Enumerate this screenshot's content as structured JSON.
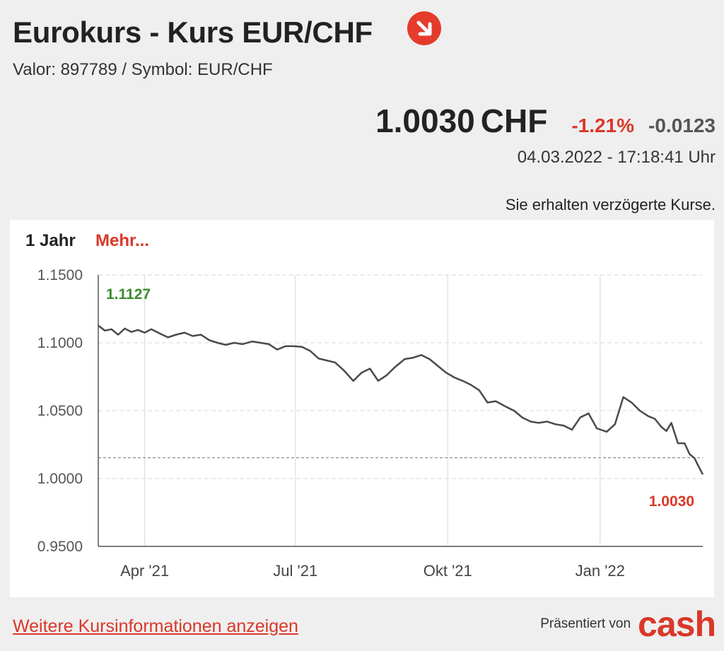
{
  "header": {
    "title": "Eurokurs - Kurs EUR/CHF",
    "subtitle": "Valor: 897789 / Symbol: EUR/CHF",
    "trend_icon": "arrow-down-right-icon"
  },
  "quote": {
    "price": "1.0030",
    "unit": "CHF",
    "change_pct": "-1.21%",
    "change_abs": "-0.0123",
    "timestamp": "04.03.2022 - 17:18:41 Uhr",
    "delay_note": "Sie erhalten verzögerte Kurse."
  },
  "chart_controls": {
    "range": "1 Jahr",
    "more": "Mehr..."
  },
  "chart_data": {
    "type": "line",
    "y_ticks": [
      "1.1500",
      "1.1000",
      "1.0500",
      "1.0000",
      "0.9500"
    ],
    "ylim": [
      0.95,
      1.15
    ],
    "x_ticks": [
      {
        "label": "Apr '21",
        "date": "2021-04-01"
      },
      {
        "label": "Jul '21",
        "date": "2021-07-01"
      },
      {
        "label": "Okt '21",
        "date": "2021-10-01"
      },
      {
        "label": "Jan '22",
        "date": "2022-01-01"
      }
    ],
    "xlim": [
      "2021-03-04",
      "2022-03-04"
    ],
    "grid": true,
    "reference_line": 1.0153,
    "annotation_high": "1.1127",
    "annotation_last": "1.0030",
    "series": [
      {
        "x": [
          "2021-03-04",
          "2021-03-08",
          "2021-03-12",
          "2021-03-16",
          "2021-03-20",
          "2021-03-24",
          "2021-03-28",
          "2021-04-01",
          "2021-04-05",
          "2021-04-10",
          "2021-04-15",
          "2021-04-20",
          "2021-04-25",
          "2021-04-30",
          "2021-05-05",
          "2021-05-10",
          "2021-05-15",
          "2021-05-20",
          "2021-05-25",
          "2021-05-30",
          "2021-06-05",
          "2021-06-10",
          "2021-06-15",
          "2021-06-20",
          "2021-06-25",
          "2021-06-30",
          "2021-07-05",
          "2021-07-10",
          "2021-07-15",
          "2021-07-20",
          "2021-07-25",
          "2021-07-30",
          "2021-08-05",
          "2021-08-10",
          "2021-08-15",
          "2021-08-20",
          "2021-08-25",
          "2021-08-30",
          "2021-09-05",
          "2021-09-10",
          "2021-09-15",
          "2021-09-20",
          "2021-09-25",
          "2021-09-30",
          "2021-10-05",
          "2021-10-10",
          "2021-10-15",
          "2021-10-20",
          "2021-10-25",
          "2021-10-30",
          "2021-11-05",
          "2021-11-10",
          "2021-11-15",
          "2021-11-20",
          "2021-11-25",
          "2021-11-30",
          "2021-12-05",
          "2021-12-10",
          "2021-12-15",
          "2021-12-20",
          "2021-12-25",
          "2021-12-30",
          "2022-01-05",
          "2022-01-10",
          "2022-01-15",
          "2022-01-20",
          "2022-01-25",
          "2022-01-30",
          "2022-02-03",
          "2022-02-07",
          "2022-02-10",
          "2022-02-13",
          "2022-02-17",
          "2022-02-21",
          "2022-02-24",
          "2022-02-27",
          "2022-03-01",
          "2022-03-04"
        ],
        "y": [
          1.1127,
          1.109,
          1.11,
          1.106,
          1.1105,
          1.108,
          1.1095,
          1.1075,
          1.11,
          1.107,
          1.104,
          1.106,
          1.1075,
          1.105,
          1.106,
          1.102,
          1.1,
          1.0985,
          1.1,
          1.099,
          1.101,
          1.1,
          1.099,
          1.095,
          1.0975,
          1.0975,
          1.097,
          1.094,
          1.0885,
          1.087,
          1.0855,
          1.08,
          1.072,
          1.078,
          1.081,
          1.072,
          1.076,
          1.082,
          1.088,
          1.089,
          1.091,
          1.088,
          1.083,
          1.078,
          1.0745,
          1.072,
          1.069,
          1.065,
          1.056,
          1.057,
          1.053,
          1.05,
          1.045,
          1.042,
          1.041,
          1.042,
          1.04,
          1.039,
          1.036,
          1.045,
          1.048,
          1.037,
          1.0345,
          1.04,
          1.06,
          1.056,
          1.05,
          1.046,
          1.044,
          1.038,
          1.035,
          1.041,
          1.026,
          1.026,
          1.018,
          1.015,
          1.01,
          1.003
        ]
      }
    ]
  },
  "footer": {
    "more_info_link": "Weitere Kursinformationen anzeigen",
    "presented_by": "Präsentiert von",
    "brand": "cash"
  },
  "colors": {
    "accent": "#d93829",
    "positive": "#3d8a2f",
    "line": "#4a4a4a",
    "grid": "#d8d8d8",
    "background": "#efefef"
  }
}
